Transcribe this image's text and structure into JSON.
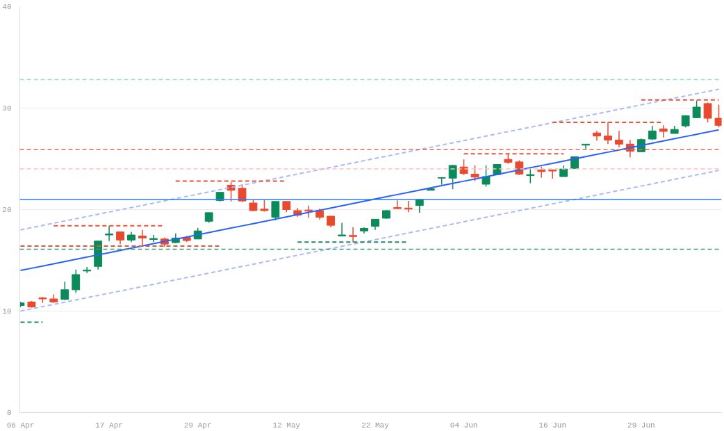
{
  "chart_data": {
    "type": "candlestick",
    "categories": [
      "06 Apr",
      null,
      null,
      null,
      null,
      null,
      null,
      null,
      "17 Apr",
      null,
      null,
      null,
      null,
      null,
      null,
      null,
      "29 Apr",
      null,
      null,
      null,
      null,
      null,
      null,
      null,
      "12 May",
      null,
      null,
      null,
      null,
      null,
      null,
      null,
      "22 May",
      null,
      null,
      null,
      null,
      null,
      null,
      null,
      "04 Jun",
      null,
      null,
      null,
      null,
      null,
      null,
      null,
      "16 Jun",
      null,
      null,
      null,
      null,
      null,
      null,
      null,
      "29 Jun",
      null,
      null,
      null,
      null,
      null,
      null,
      null
    ],
    "ohlc": [
      [
        10.55,
        10.9,
        10.4,
        10.8
      ],
      [
        10.9,
        11.0,
        10.35,
        10.4
      ],
      [
        11.3,
        11.4,
        10.8,
        11.2
      ],
      [
        11.2,
        11.65,
        10.8,
        10.9
      ],
      [
        11.15,
        12.9,
        11.1,
        12.1
      ],
      [
        12.1,
        14.1,
        11.8,
        13.6
      ],
      [
        13.95,
        14.35,
        13.75,
        14.05
      ],
      [
        14.4,
        16.9,
        14.1,
        16.9
      ],
      [
        17.5,
        18.4,
        16.9,
        17.6
      ],
      [
        17.8,
        17.8,
        16.6,
        17.0
      ],
      [
        17.0,
        17.8,
        16.8,
        17.5
      ],
      [
        17.4,
        18.0,
        16.45,
        17.2
      ],
      [
        17.05,
        17.5,
        16.8,
        17.15
      ],
      [
        17.1,
        17.25,
        16.35,
        16.6
      ],
      [
        16.75,
        17.65,
        16.7,
        17.2
      ],
      [
        17.25,
        17.4,
        16.8,
        16.95
      ],
      [
        17.1,
        18.2,
        17.1,
        17.9
      ],
      [
        18.85,
        19.7,
        18.7,
        19.7
      ],
      [
        20.9,
        21.7,
        20.8,
        21.7
      ],
      [
        22.4,
        22.7,
        20.8,
        21.9
      ],
      [
        22.1,
        22.5,
        20.75,
        20.85
      ],
      [
        20.65,
        20.95,
        19.85,
        19.9
      ],
      [
        20.05,
        20.95,
        19.8,
        19.9
      ],
      [
        19.25,
        20.8,
        18.95,
        20.8
      ],
      [
        20.8,
        20.8,
        19.75,
        20.0
      ],
      [
        19.9,
        20.15,
        19.3,
        19.45
      ],
      [
        19.95,
        20.4,
        19.2,
        19.85
      ],
      [
        19.9,
        20.1,
        19.0,
        19.25
      ],
      [
        19.35,
        19.4,
        18.25,
        18.45
      ],
      [
        17.4,
        18.7,
        17.4,
        17.5
      ],
      [
        17.45,
        18.25,
        16.8,
        17.35
      ],
      [
        17.9,
        18.25,
        17.65,
        18.15
      ],
      [
        18.35,
        19.05,
        18.0,
        19.05
      ],
      [
        19.15,
        19.95,
        19.1,
        19.9
      ],
      [
        20.2,
        20.9,
        20.05,
        20.1
      ],
      [
        20.15,
        20.85,
        19.75,
        20.05
      ],
      [
        20.4,
        21.0,
        19.7,
        21.0
      ],
      [
        21.9,
        22.05,
        21.9,
        22.05
      ],
      [
        23.1,
        23.2,
        22.45,
        23.15
      ],
      [
        23.1,
        24.4,
        22.0,
        24.35
      ],
      [
        24.2,
        24.95,
        23.4,
        23.55
      ],
      [
        23.5,
        24.35,
        22.8,
        23.2
      ],
      [
        22.5,
        24.35,
        22.25,
        23.25
      ],
      [
        23.45,
        24.45,
        23.45,
        24.45
      ],
      [
        24.95,
        25.45,
        24.5,
        24.65
      ],
      [
        24.7,
        24.85,
        23.4,
        23.5
      ],
      [
        23.35,
        24.15,
        22.6,
        23.45
      ],
      [
        23.9,
        24.25,
        23.15,
        23.75
      ],
      [
        23.9,
        23.95,
        23.05,
        23.8
      ],
      [
        23.25,
        24.35,
        23.25,
        24.0
      ],
      [
        24.05,
        25.2,
        24.0,
        25.2
      ],
      [
        26.35,
        26.45,
        26.0,
        26.45
      ],
      [
        27.55,
        27.75,
        26.8,
        27.25
      ],
      [
        27.25,
        28.6,
        26.45,
        26.85
      ],
      [
        26.85,
        27.75,
        26.15,
        26.45
      ],
      [
        26.45,
        26.85,
        25.15,
        25.75
      ],
      [
        25.7,
        27.0,
        25.7,
        26.9
      ],
      [
        26.95,
        28.25,
        26.85,
        27.75
      ],
      [
        27.95,
        28.3,
        27.1,
        27.7
      ],
      [
        27.5,
        28.25,
        27.5,
        27.9
      ],
      [
        28.25,
        29.3,
        28.1,
        29.25
      ],
      [
        29.05,
        30.75,
        29.0,
        30.1
      ],
      [
        30.45,
        30.55,
        28.6,
        29.0
      ],
      [
        29.0,
        30.35,
        28.1,
        28.3
      ]
    ],
    "series": [
      {
        "type": "line",
        "color": "#2962ff",
        "line_style": "solid",
        "values": [
          14.0,
          14.22,
          14.44,
          14.66,
          14.88,
          15.1,
          15.32,
          15.54,
          15.76,
          15.98,
          16.2,
          16.42,
          16.64,
          16.86,
          17.08,
          17.3,
          17.52,
          17.74,
          17.96,
          18.18,
          18.4,
          18.62,
          18.84,
          19.06,
          19.28,
          19.5,
          19.72,
          19.94,
          20.16,
          20.38,
          20.6,
          20.82,
          21.04,
          21.26,
          21.48,
          21.7,
          21.92,
          22.14,
          22.36,
          22.58,
          22.8,
          23.02,
          23.24,
          23.46,
          23.68,
          23.9,
          24.12,
          24.34,
          24.56,
          24.78,
          25.0,
          25.22,
          25.44,
          25.66,
          25.88,
          26.1,
          26.32,
          26.54,
          26.76,
          26.98,
          27.2,
          27.42,
          27.64,
          27.86
        ]
      },
      {
        "type": "line",
        "color": "#aabaf8",
        "line_style": "dashed",
        "values": [
          18.0,
          18.22,
          18.44,
          18.66,
          18.88,
          19.1,
          19.32,
          19.54,
          19.76,
          19.98,
          20.2,
          20.42,
          20.64,
          20.86,
          21.08,
          21.3,
          21.52,
          21.74,
          21.96,
          22.18,
          22.4,
          22.62,
          22.84,
          23.06,
          23.28,
          23.5,
          23.72,
          23.94,
          24.16,
          24.38,
          24.6,
          24.82,
          25.04,
          25.26,
          25.48,
          25.7,
          25.92,
          26.14,
          26.36,
          26.58,
          26.8,
          27.02,
          27.24,
          27.46,
          27.68,
          27.9,
          28.12,
          28.34,
          28.56,
          28.78,
          29.0,
          29.22,
          29.44,
          29.66,
          29.88,
          30.1,
          30.32,
          30.54,
          30.76,
          30.98,
          31.2,
          31.42,
          31.64,
          31.86
        ]
      },
      {
        "type": "line",
        "color": "#aabaf8",
        "line_style": "dashed",
        "values": [
          10.0,
          10.22,
          10.44,
          10.66,
          10.88,
          11.1,
          11.32,
          11.54,
          11.76,
          11.98,
          12.2,
          12.42,
          12.64,
          12.86,
          13.08,
          13.3,
          13.52,
          13.74,
          13.96,
          14.18,
          14.4,
          14.62,
          14.84,
          15.06,
          15.28,
          15.5,
          15.72,
          15.94,
          16.16,
          16.38,
          16.6,
          16.82,
          17.04,
          17.26,
          17.48,
          17.7,
          17.92,
          18.14,
          18.36,
          18.58,
          18.8,
          19.02,
          19.24,
          19.46,
          19.68,
          19.9,
          20.12,
          20.34,
          20.56,
          20.78,
          21.0,
          21.22,
          21.44,
          21.66,
          21.88,
          22.1,
          22.32,
          22.54,
          22.76,
          22.98,
          23.2,
          23.42,
          23.64,
          23.86
        ]
      },
      {
        "type": "line",
        "color": "#e8553a",
        "line_style": "dashed",
        "values": [
          null,
          null,
          null,
          18.4,
          18.4,
          18.4,
          18.4,
          18.4,
          18.4,
          18.4,
          18.4,
          18.4,
          18.4,
          18.4,
          null,
          null,
          null,
          null,
          null,
          null,
          null,
          null,
          null,
          null,
          null,
          null,
          null,
          null,
          null,
          null,
          null,
          null,
          null,
          null,
          null,
          null,
          null,
          null,
          null,
          null,
          null,
          null,
          null,
          null,
          null,
          null,
          null,
          null,
          null,
          null,
          null,
          null,
          null,
          null,
          null,
          null,
          null,
          null,
          null,
          null,
          null,
          null,
          null,
          null
        ]
      },
      {
        "type": "line",
        "color": "#e8553a",
        "line_style": "dashed",
        "values": [
          16.4,
          16.4,
          16.4,
          16.4,
          16.4,
          16.4,
          16.4,
          16.4,
          16.4,
          16.4,
          16.4,
          16.4,
          16.4,
          16.4,
          16.4,
          16.4,
          16.4,
          16.4,
          16.4,
          null,
          null,
          null,
          null,
          null,
          null,
          null,
          null,
          null,
          null,
          null,
          null,
          null,
          null,
          null,
          null,
          null,
          null,
          null,
          null,
          null,
          null,
          null,
          null,
          null,
          null,
          null,
          null,
          null,
          null,
          null,
          null,
          null,
          null,
          null,
          null,
          null,
          null,
          null,
          null,
          null,
          null,
          null,
          null,
          null
        ]
      },
      {
        "type": "line",
        "color": "#1f8a60",
        "line_style": "dashed",
        "values": [
          8.9,
          8.9,
          8.9,
          null,
          null,
          null,
          null,
          null,
          null,
          null,
          null,
          null,
          null,
          null,
          null,
          null,
          null,
          null,
          null,
          null,
          null,
          null,
          null,
          null,
          null,
          null,
          null,
          null,
          null,
          null,
          null,
          null,
          null,
          null,
          null,
          null,
          null,
          null,
          null,
          null,
          null,
          null,
          null,
          null,
          null,
          null,
          null,
          null,
          null,
          null,
          null,
          null,
          null,
          null,
          null,
          null,
          null,
          null,
          null,
          null,
          null,
          null,
          null,
          null
        ]
      },
      {
        "type": "line",
        "color": "#e8553a",
        "line_style": "dashed",
        "values": [
          null,
          null,
          null,
          null,
          null,
          null,
          null,
          null,
          null,
          null,
          null,
          null,
          null,
          null,
          22.8,
          22.8,
          22.8,
          22.8,
          22.8,
          22.8,
          22.8,
          22.8,
          22.8,
          22.8,
          22.8,
          null,
          null,
          null,
          null,
          null,
          null,
          null,
          null,
          null,
          null,
          null,
          null,
          null,
          null,
          null,
          null,
          null,
          null,
          null,
          null,
          null,
          null,
          null,
          null,
          null,
          null,
          null,
          null,
          null,
          null,
          null,
          null,
          null,
          null,
          null,
          null,
          null,
          null,
          null
        ]
      },
      {
        "type": "line",
        "color": "#1f8a60",
        "line_style": "dashed",
        "values": [
          null,
          null,
          null,
          null,
          null,
          null,
          null,
          null,
          null,
          null,
          null,
          null,
          null,
          null,
          null,
          null,
          null,
          null,
          null,
          null,
          null,
          null,
          null,
          null,
          null,
          16.8,
          16.8,
          16.8,
          16.8,
          16.8,
          16.8,
          16.8,
          16.8,
          16.8,
          16.8,
          16.8,
          null,
          null,
          null,
          null,
          null,
          null,
          null,
          null,
          null,
          null,
          null,
          null,
          null,
          null,
          null,
          null,
          null,
          null,
          null,
          null,
          null,
          null,
          null,
          null,
          null,
          null,
          null,
          null
        ]
      },
      {
        "type": "line",
        "color": "#e8553a",
        "line_style": "dashed",
        "values": [
          null,
          null,
          null,
          null,
          null,
          null,
          null,
          null,
          null,
          null,
          null,
          null,
          null,
          null,
          null,
          null,
          null,
          null,
          null,
          null,
          null,
          null,
          null,
          null,
          null,
          null,
          null,
          null,
          null,
          null,
          null,
          null,
          null,
          null,
          null,
          null,
          null,
          null,
          null,
          null,
          25.5,
          25.5,
          25.5,
          25.5,
          25.5,
          25.5,
          25.5,
          25.5,
          25.5,
          25.5,
          null,
          null,
          null,
          null,
          null,
          null,
          null,
          null,
          null,
          null,
          null,
          null,
          null,
          null
        ]
      },
      {
        "type": "line",
        "color": "#e8553a",
        "line_style": "dashed",
        "values": [
          null,
          null,
          null,
          null,
          null,
          null,
          null,
          null,
          null,
          null,
          null,
          null,
          null,
          null,
          null,
          null,
          null,
          null,
          null,
          null,
          null,
          null,
          null,
          null,
          null,
          null,
          null,
          null,
          null,
          null,
          null,
          null,
          null,
          null,
          null,
          null,
          null,
          null,
          null,
          null,
          null,
          null,
          null,
          null,
          null,
          null,
          null,
          null,
          28.6,
          28.6,
          28.6,
          28.6,
          28.6,
          28.6,
          28.6,
          28.6,
          28.6,
          28.6,
          28.6,
          null,
          null,
          null,
          null,
          null
        ]
      },
      {
        "type": "line",
        "color": "#e8553a",
        "line_style": "dashed",
        "values": [
          null,
          null,
          null,
          null,
          null,
          null,
          null,
          null,
          null,
          null,
          null,
          null,
          null,
          null,
          null,
          null,
          null,
          null,
          null,
          null,
          null,
          null,
          null,
          null,
          null,
          null,
          null,
          null,
          null,
          null,
          null,
          null,
          null,
          null,
          null,
          null,
          null,
          null,
          null,
          null,
          null,
          null,
          null,
          null,
          null,
          null,
          null,
          null,
          null,
          null,
          null,
          null,
          null,
          null,
          null,
          null,
          30.8,
          30.8,
          30.8,
          30.8,
          30.8,
          30.8,
          30.8,
          30.8
        ]
      }
    ],
    "ref_lines": [
      {
        "axis": "y",
        "value": 32.8,
        "color": "#8fe3c8",
        "line_style": "dashed"
      },
      {
        "axis": "y",
        "value": 25.9,
        "color": "#e26a55",
        "line_style": "dashed"
      },
      {
        "axis": "y",
        "value": 24.0,
        "color": "#ffc0c0",
        "line_style": "dashed"
      },
      {
        "axis": "y",
        "value": 21.0,
        "color": "#2979ff",
        "line_style": "solid"
      },
      {
        "axis": "y",
        "value": 16.1,
        "color": "#3a9a74",
        "line_style": "dashed"
      }
    ],
    "ylim": [
      0,
      40
    ],
    "yticks": [
      0,
      10,
      20,
      30,
      40
    ],
    "grid": "y"
  }
}
